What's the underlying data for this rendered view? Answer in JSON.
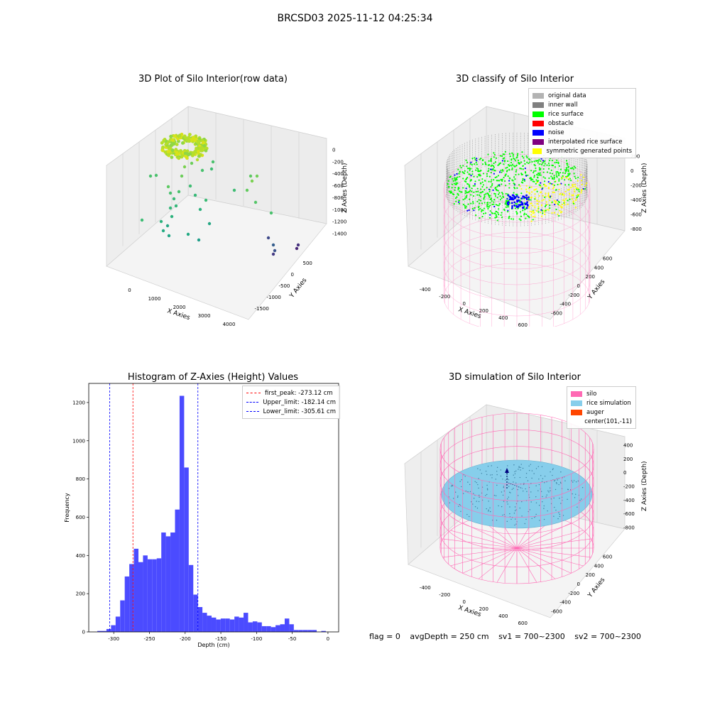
{
  "suptitle": "BRCSD03 2025-11-12 04:25:34",
  "colors": {
    "silo": "#ff69b4",
    "rice": "#87ceeb",
    "auger": "#ff4500",
    "hist": "#4b4bff",
    "peak": "#ff0000",
    "limit": "#0000ff"
  },
  "chart_data": [
    {
      "type": "scatter3d",
      "title": "3D Plot of Silo Interior(row data)",
      "xlabel": "X Axies",
      "ylabel": "Y Axies",
      "zlabel": "Z Axies (Depth)",
      "xticks": [
        "0",
        "1000",
        "2000",
        "3000",
        "4000"
      ],
      "yticks": [
        "500",
        "0",
        "-500",
        "-1000",
        "-1500"
      ],
      "zticks": [
        "0",
        "-200",
        "-400",
        "-600",
        "-800",
        "-1000",
        "-1200",
        "-1400"
      ]
    },
    {
      "type": "scatter3d",
      "title": "3D classify of Silo Interior",
      "xlabel": "X Axies",
      "ylabel": "Y Axies",
      "zlabel": "Z Axies (Depth)",
      "xticks": [
        "-400",
        "-200",
        "0",
        "200",
        "400",
        "600"
      ],
      "yticks": [
        "600",
        "400",
        "200",
        "0",
        "-200",
        "-400",
        "-600"
      ],
      "zticks": [
        "200",
        "0",
        "-200",
        "-400",
        "-600",
        "-800"
      ],
      "legend": [
        {
          "label": "original data",
          "color": "#b3b3b3"
        },
        {
          "label": "inner wall",
          "color": "#808080"
        },
        {
          "label": "rice surface",
          "color": "#00ff00"
        },
        {
          "label": "obstacle",
          "color": "#ff0000"
        },
        {
          "label": "noise",
          "color": "#0000ff"
        },
        {
          "label": "interpolated rice surface",
          "color": "#800080"
        },
        {
          "label": "symmetric generated points",
          "color": "#ffff00"
        }
      ]
    },
    {
      "type": "bar",
      "title": "Histogram of Z-Axies (Height) Values",
      "xlabel": "Depth (cm)",
      "ylabel": "Frequency",
      "xlim": [
        -335,
        15
      ],
      "ylim": [
        0,
        1300
      ],
      "xticks": [
        -300,
        -250,
        -200,
        -150,
        -100,
        -50,
        0
      ],
      "yticks": [
        0,
        200,
        400,
        600,
        800,
        1000,
        1200
      ],
      "bin_width": 6.4,
      "bin_start": -323,
      "values": [
        5,
        5,
        15,
        35,
        80,
        165,
        290,
        355,
        435,
        365,
        400,
        380,
        380,
        385,
        520,
        500,
        520,
        640,
        1235,
        860,
        350,
        195,
        130,
        100,
        85,
        75,
        65,
        70,
        70,
        65,
        80,
        75,
        100,
        50,
        55,
        50,
        30,
        30,
        25,
        35,
        40,
        70,
        40,
        10,
        10,
        10,
        10,
        10,
        0,
        5
      ],
      "vlines": [
        {
          "label": "first_peak: -273.12 cm",
          "x": -273.12,
          "color": "#ff0000"
        },
        {
          "label": "Upper_limit: -182.14 cm",
          "x": -182.14,
          "color": "#0000ff"
        },
        {
          "label": "Lower_limit: -305.61 cm",
          "x": -305.61,
          "color": "#0000ff"
        }
      ]
    },
    {
      "type": "surface3d",
      "title": "3D simulation of Silo Interior",
      "xlabel": "X Axies",
      "ylabel": "Y Axies",
      "zlabel": "Z Axies (Depth)",
      "xticks": [
        "-400",
        "-200",
        "0",
        "200",
        "400",
        "600"
      ],
      "yticks": [
        "600",
        "400",
        "200",
        "0",
        "-200",
        "-400",
        "-600"
      ],
      "zticks": [
        "400",
        "200",
        "0",
        "-200",
        "-400",
        "-600",
        "-800"
      ],
      "legend": [
        {
          "label": "silo",
          "color": "#ff69b4"
        },
        {
          "label": "rice simulation",
          "color": "#87ceeb"
        },
        {
          "label": "auger",
          "color": "#ff4500"
        },
        {
          "label": "center(101,-11)",
          "color": ""
        }
      ]
    }
  ],
  "status": {
    "flag": "flag = 0",
    "avg": "avgDepth = 250 cm",
    "sv1": "sv1 = 700~2300",
    "sv2": "sv2 = 700~2300"
  }
}
